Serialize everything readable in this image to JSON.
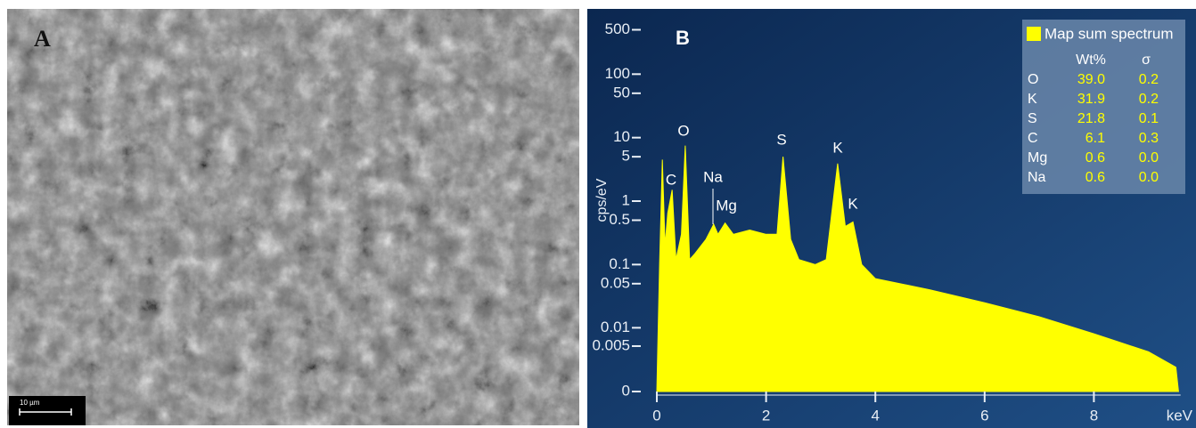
{
  "panel_a": {
    "label": "A",
    "scale_bar": "10 µm"
  },
  "chart_data": {
    "type": "area",
    "panel_label": "B",
    "y_label": "cps/eV",
    "x_unit": "keV",
    "yscale": "symlog",
    "x": [
      0.0,
      0.05,
      0.1,
      0.15,
      0.2,
      0.28,
      0.35,
      0.45,
      0.52,
      0.6,
      0.7,
      0.9,
      1.04,
      1.12,
      1.25,
      1.4,
      1.7,
      2.0,
      2.2,
      2.31,
      2.45,
      2.6,
      2.9,
      3.1,
      3.31,
      3.45,
      3.59,
      3.75,
      4.0,
      5.0,
      6.0,
      7.0,
      8.0,
      9.0,
      9.5,
      9.55
    ],
    "series": [
      {
        "name": "Map sum spectrum",
        "color": "#ffff00",
        "values": [
          0,
          0.1,
          4.5,
          0.2,
          0.65,
          1.5,
          0.12,
          0.3,
          7.5,
          0.12,
          0.15,
          0.25,
          0.43,
          0.3,
          0.45,
          0.3,
          0.35,
          0.3,
          0.3,
          5,
          0.25,
          0.12,
          0.1,
          0.12,
          3.9,
          0.4,
          0.47,
          0.1,
          0.06,
          0.04,
          0.025,
          0.015,
          0.008,
          0.004,
          0.002,
          0
        ]
      }
    ],
    "xlim": [
      -0.4,
      9.75
    ],
    "xticks": [
      0,
      2,
      4,
      6,
      8
    ],
    "ylim": [
      0,
      1000
    ],
    "yticks": [
      500,
      100,
      50,
      10,
      5,
      1,
      0.5,
      0.1,
      0.05,
      0.01,
      0.005,
      0
    ],
    "annotations": [
      "C",
      "O",
      "Na",
      "Mg",
      "S",
      "K",
      "K"
    ],
    "legend_table": {
      "columns": [
        "Wt%",
        "σ"
      ],
      "rows": [
        [
          "O",
          "39.0",
          "0.2"
        ],
        [
          "K",
          "31.9",
          "0.2"
        ],
        [
          "S",
          "21.8",
          "0.1"
        ],
        [
          "C",
          "6.1",
          "0.3"
        ],
        [
          "Mg",
          "0.6",
          "0.0"
        ],
        [
          "Na",
          "0.6",
          "0.0"
        ]
      ]
    }
  }
}
